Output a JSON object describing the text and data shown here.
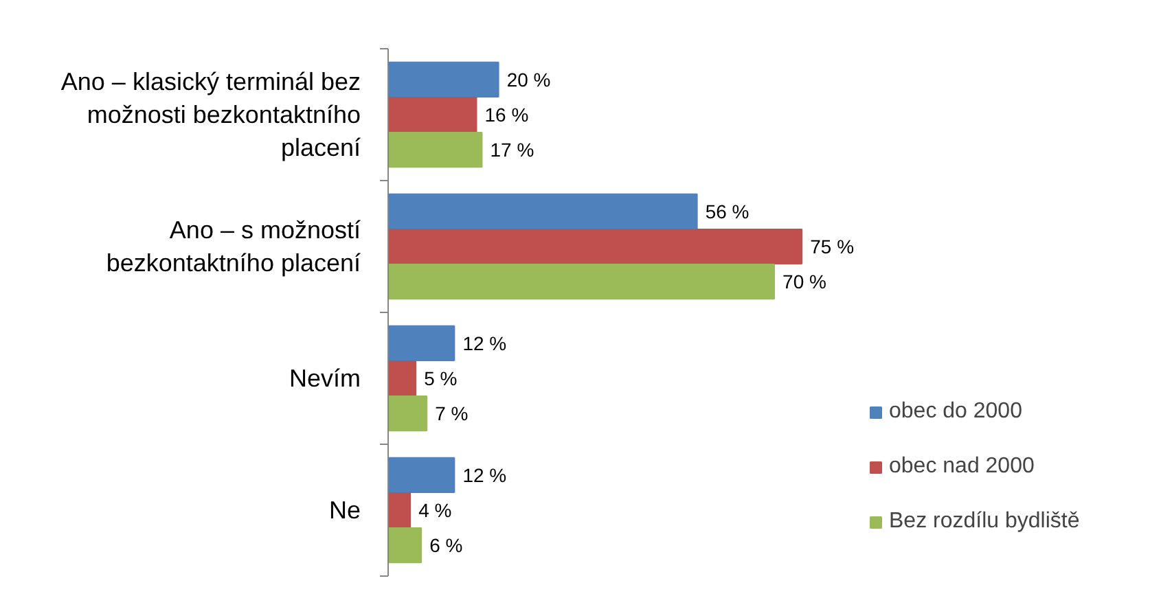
{
  "chart_data": {
    "type": "bar",
    "orientation": "horizontal",
    "tick_labels": "y",
    "legend": "right",
    "grid": false,
    "categories": [
      "Ano – klasický terminál bez možnosti bezkontaktního placení",
      "Ano – s možností bezkontaktního placení",
      "Nevím",
      "Ne"
    ],
    "series": [
      {
        "name": "obec do 2000",
        "color": "#4f81bd",
        "values": [
          20,
          56,
          12,
          12
        ],
        "value_labels": [
          "20 %",
          "56 %",
          "12 %",
          "12 %"
        ]
      },
      {
        "name": "obec nad 2000",
        "color": "#c0504d",
        "values": [
          16,
          75,
          5,
          4
        ],
        "value_labels": [
          "16 %",
          "75 %",
          "5 %",
          "4 %"
        ]
      },
      {
        "name": "Bez rozdílu bydliště",
        "color": "#9bbb59",
        "values": [
          17,
          70,
          7,
          6
        ],
        "value_labels": [
          "17 %",
          "70 %",
          "7 %",
          "6 %"
        ]
      }
    ]
  }
}
